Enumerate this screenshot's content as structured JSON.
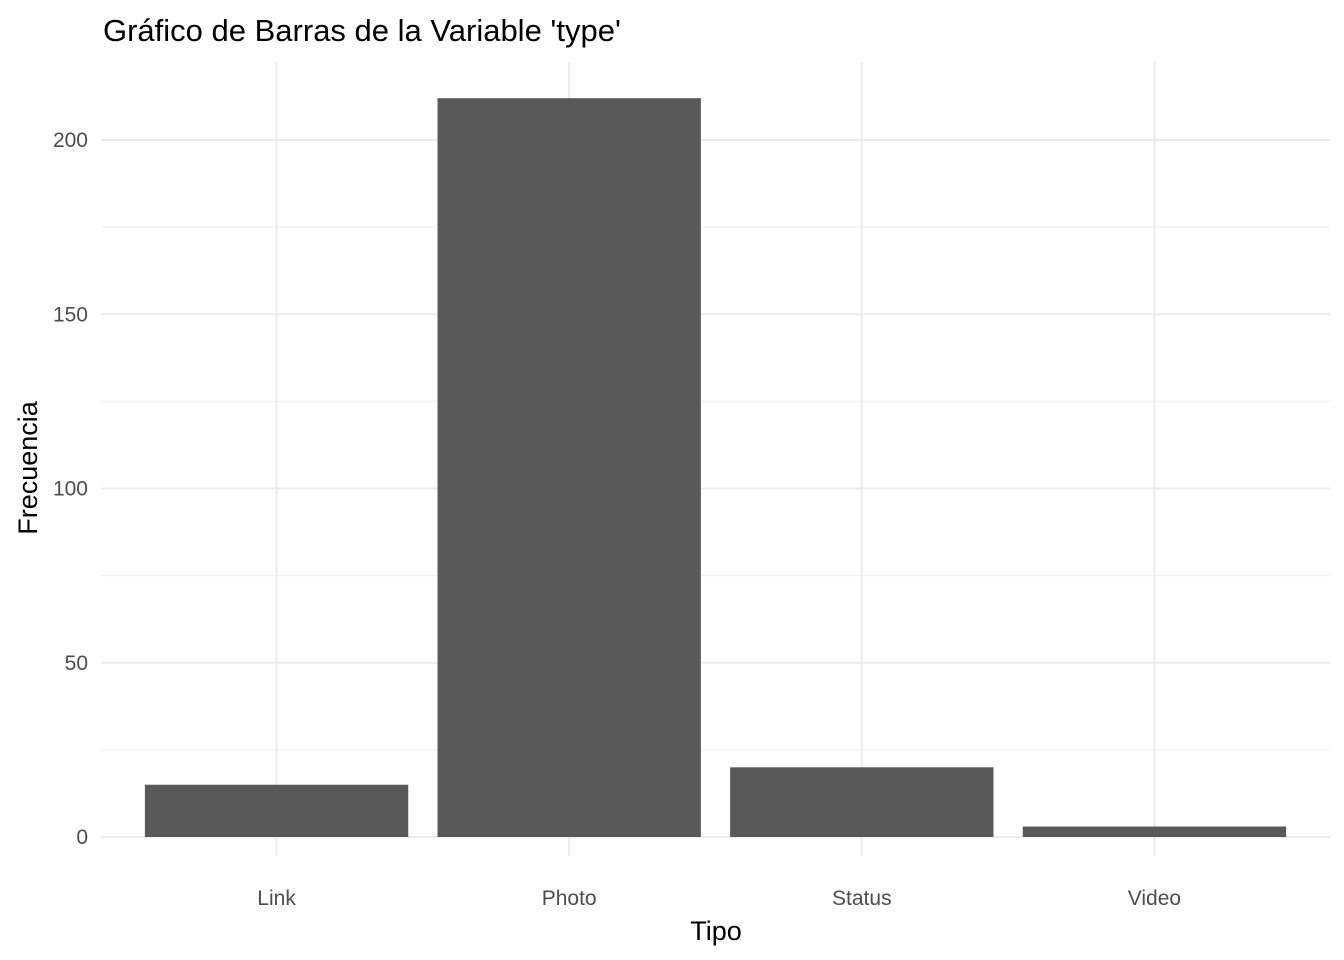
{
  "chart_data": {
    "type": "bar",
    "title": "Gráfico de Barras de la Variable 'type'",
    "xlabel": "Tipo",
    "ylabel": "Frecuencia",
    "categories": [
      "Link",
      "Photo",
      "Status",
      "Video"
    ],
    "values": [
      15,
      212,
      20,
      3
    ],
    "ylim": [
      0,
      222
    ],
    "yticks": [
      0,
      50,
      100,
      150,
      200
    ],
    "bar_color": "#595959",
    "grid": true,
    "legend": "none"
  }
}
